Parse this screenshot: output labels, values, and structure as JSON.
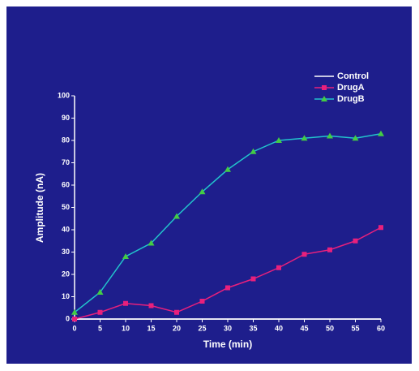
{
  "chart_data": {
    "type": "line",
    "x_label": "Time (min)",
    "y_label": "Amplitude (nA)",
    "x": [
      0,
      5,
      10,
      15,
      20,
      25,
      30,
      35,
      40,
      45,
      50,
      55,
      60
    ],
    "series": [
      {
        "name": "Control",
        "color": "#ffffff",
        "marker": "none",
        "values": [
          0,
          0,
          0,
          0,
          0,
          0,
          0,
          0,
          0,
          0,
          0,
          0,
          0
        ]
      },
      {
        "name": "DrugA",
        "color": "#e8207c",
        "marker": "square",
        "marker_color": "#e8207c",
        "values": [
          0,
          3,
          7,
          6,
          3,
          8,
          14,
          18,
          23,
          29,
          31,
          35,
          41
        ]
      },
      {
        "name": "DrugB",
        "color": "#22c4cc",
        "marker": "triangle",
        "marker_color": "#44cc44",
        "values": [
          3,
          12,
          28,
          34,
          46,
          57,
          67,
          75,
          80,
          81,
          82,
          81,
          83
        ]
      }
    ],
    "xlim": [
      0,
      60
    ],
    "xticks": [
      0,
      5,
      10,
      15,
      20,
      25,
      30,
      35,
      40,
      45,
      50,
      55,
      60
    ],
    "ylim": [
      0,
      100
    ],
    "yticks": [
      0,
      10,
      20,
      30,
      40,
      50,
      60,
      70,
      80,
      90,
      100
    ],
    "grid": false,
    "legend": "upper right"
  }
}
